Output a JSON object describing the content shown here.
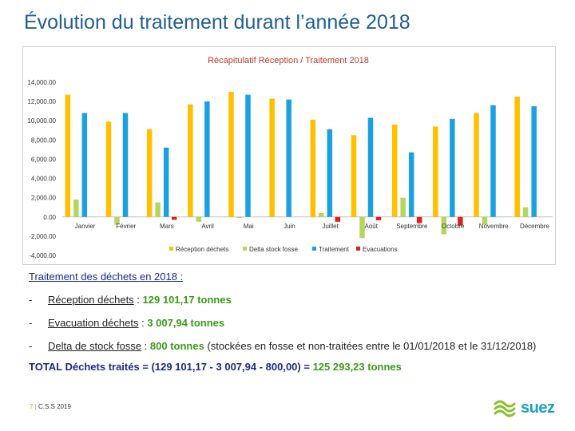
{
  "slide": {
    "title": "Évolution du traitement durant l’année 2018"
  },
  "chart_data": {
    "type": "bar",
    "title": "Récapitulatif Réception / Traitement 2018",
    "categories": [
      "Janvier",
      "Février",
      "Mars",
      "Avril",
      "Mai",
      "Juin",
      "Juillet",
      "Août",
      "Septembre",
      "Octobre",
      "Novembre",
      "Décembre"
    ],
    "series": [
      {
        "name": "Réception déchets",
        "color": "#ffc000",
        "values": [
          12700,
          9900,
          9100,
          11700,
          13000,
          12300,
          10100,
          8500,
          9600,
          9400,
          10800,
          12500
        ]
      },
      {
        "name": "Delta stock fosse",
        "color": "#b4d65e",
        "values": [
          1800,
          -800,
          1500,
          -500,
          -100,
          0,
          400,
          -2200,
          2000,
          -1800,
          -800,
          1000
        ]
      },
      {
        "name": "Traitement",
        "color": "#1ba1e2",
        "values": [
          10800,
          10800,
          7200,
          12000,
          12700,
          12200,
          9100,
          10300,
          6700,
          10200,
          11600,
          11500
        ]
      },
      {
        "name": "Evacuations",
        "color": "#e02020",
        "values": [
          0,
          0,
          -300,
          0,
          0,
          0,
          -500,
          -350,
          -650,
          -900,
          0,
          0
        ]
      }
    ],
    "yticks": [
      "14,000.00",
      "12,000.00",
      "10,000.00",
      "8,000.00",
      "6,000.00",
      "4,000.00",
      "2,000.00",
      "0.00",
      "-2,000.00",
      "-4,000.00"
    ],
    "ylim": [
      -4000,
      14000
    ],
    "grid": false,
    "legend": "bottom"
  },
  "text": {
    "heading": "Traitement des déchets en 2018 :",
    "bullet_char": "-",
    "items": [
      {
        "label": "Réception déchets",
        "sep": " : ",
        "value": "129 101,17 tonnes",
        "rest": ""
      },
      {
        "label": "Evacuation déchets",
        "sep": " : ",
        "value": "3 007,94 tonnes",
        "rest": ""
      },
      {
        "label": "Delta de stock fosse",
        "sep": " : ",
        "value": "800 tonnes",
        "rest": " (stockées en fosse et non-traitées entre le 01/01/2018 et le 31/12/2018)"
      }
    ],
    "total_label": "TOTAL Déchets traités",
    "total_eq": " = ",
    "total_formula": "(129 101,17 - 3 007,94 - 800,00)",
    "total_eq2": " = ",
    "total_value": "125 293,23 tonnes"
  },
  "footer": {
    "page": "7",
    "sep": " | ",
    "text": "C.S.S 2019"
  },
  "logo": {
    "text": "suez",
    "icon": "suez-waves-icon",
    "color_green": "#8cbf2e",
    "color_blue": "#1aa3c8"
  }
}
